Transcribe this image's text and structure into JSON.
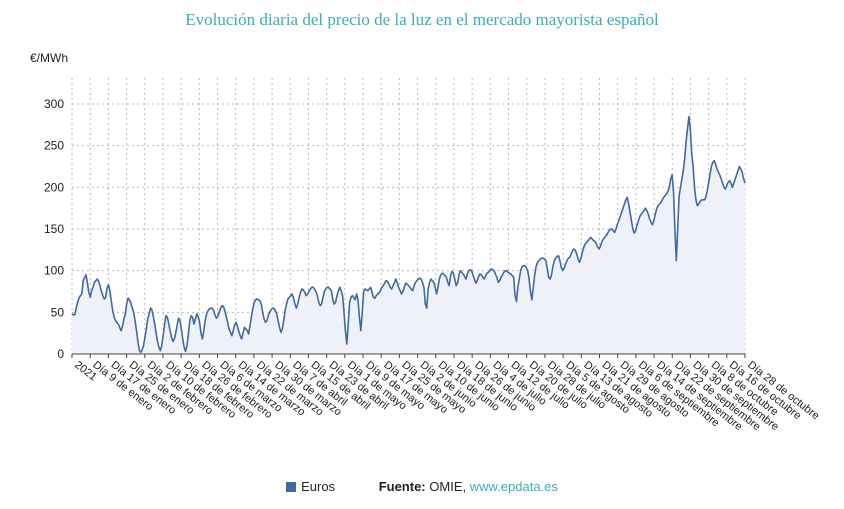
{
  "title": "Evolución diaria del precio de la luz en el mercado mayorista español",
  "unit_label": "€/MWh",
  "legend": {
    "label": "Euros",
    "color": "#3f6aa1"
  },
  "source": {
    "label": "Fuente:",
    "name": "OMIE,",
    "link": "www.epdata.es"
  },
  "colors": {
    "title": "#3aaebe",
    "line": "#3f6aa1",
    "area": "#eef2f8",
    "grid": "#bbbbbb"
  },
  "chart_data": {
    "type": "area",
    "ylim": [
      0,
      300
    ],
    "yticks": [
      0,
      50,
      100,
      150,
      200,
      250,
      300
    ],
    "grid": true,
    "legend_position": "bottom",
    "x_tick_labels": [
      "2021",
      "Día 9 de enero",
      "Día 17 de enero",
      "Día 25 de enero",
      "Día 2 de febrero",
      "Día 10 de febrero",
      "Día 18 de febrero",
      "Día 26 de febrero",
      "Día 6 de marzo",
      "Día 14 de marzo",
      "Día 22 de marzo",
      "Día 30 de marzo",
      "Día 7 de abril",
      "Día 15 de abril",
      "Día 23 de abril",
      "Día 1 de mayo",
      "Día 9 de mayo",
      "Día 17 de mayo",
      "Día 25 de mayo",
      "Día 2 de junio",
      "Día 10 de junio",
      "Día 18 de junio",
      "Día 26 de junio",
      "Día 4 de julio",
      "Día 12 de julio",
      "Día 20 de julio",
      "Día 28 de julio",
      "Día 5 de agosto",
      "Día 13 de agosto",
      "Día 21 de agosto",
      "Día 29 de agosto",
      "Día 6 de septiembre",
      "Día 14 de septiembre",
      "Día 22 de septiembre",
      "Día 30 de septiembre",
      "Día 8 de octubre",
      "Día 16 de octubre",
      "Día 28 de octubre"
    ],
    "series": [
      {
        "name": "Euros",
        "values": [
          48,
          47,
          47,
          55,
          62,
          67,
          70,
          72,
          88,
          92,
          95,
          85,
          74,
          68,
          76,
          80,
          86,
          88,
          90,
          87,
          82,
          75,
          70,
          66,
          68,
          79,
          83,
          76,
          64,
          52,
          45,
          40,
          38,
          36,
          32,
          28,
          33,
          42,
          48,
          60,
          67,
          65,
          61,
          55,
          50,
          40,
          28,
          15,
          5,
          2,
          5,
          10,
          20,
          30,
          42,
          48,
          55,
          53,
          45,
          36,
          25,
          15,
          8,
          4,
          10,
          22,
          35,
          46,
          44,
          36,
          28,
          20,
          15,
          18,
          25,
          35,
          43,
          40,
          30,
          18,
          8,
          3,
          10,
          24,
          40,
          46,
          44,
          36,
          42,
          48,
          45,
          38,
          25,
          18,
          28,
          40,
          48,
          52,
          54,
          55,
          55,
          52,
          47,
          43,
          45,
          50,
          55,
          58,
          57,
          52,
          45,
          38,
          30,
          26,
          22,
          28,
          35,
          38,
          33,
          27,
          22,
          18,
          25,
          32,
          30,
          28,
          24,
          35,
          45,
          55,
          62,
          65,
          66,
          65,
          64,
          60,
          50,
          42,
          38,
          40,
          46,
          50,
          53,
          55,
          55,
          52,
          48,
          40,
          32,
          26,
          30,
          40,
          52,
          60,
          66,
          68,
          70,
          72,
          67,
          60,
          55,
          60,
          68,
          74,
          78,
          77,
          74,
          70,
          72,
          75,
          78,
          80,
          80,
          78,
          75,
          70,
          62,
          58,
          60,
          68,
          75,
          78,
          80,
          80,
          78,
          76,
          65,
          60,
          62,
          70,
          76,
          80,
          76,
          70,
          50,
          28,
          12,
          35,
          62,
          68,
          70,
          68,
          65,
          72,
          65,
          44,
          28,
          50,
          75,
          78,
          77,
          76,
          78,
          80,
          74,
          68,
          67,
          70,
          72,
          73,
          76,
          80,
          82,
          85,
          88,
          87,
          84,
          80,
          78,
          82,
          86,
          90,
          85,
          80,
          76,
          72,
          75,
          80,
          85,
          84,
          82,
          80,
          78,
          76,
          82,
          86,
          88,
          90,
          91,
          90,
          86,
          80,
          60,
          55,
          78,
          85,
          90,
          88,
          86,
          80,
          72,
          80,
          90,
          95,
          97,
          96,
          94,
          92,
          86,
          82,
          94,
          99,
          97,
          90,
          82,
          85,
          95,
          100,
          98,
          96,
          93,
          90,
          96,
          100,
          101,
          100,
          95,
          90,
          85,
          88,
          93,
          96,
          95,
          92,
          90,
          94,
          97,
          98,
          100,
          102,
          101,
          100,
          96,
          92,
          86,
          88,
          92,
          95,
          98,
          100,
          100,
          98,
          97,
          96,
          94,
          92,
          70,
          63,
          80,
          90,
          100,
          105,
          106,
          106,
          104,
          100,
          90,
          75,
          65,
          80,
          95,
          105,
          110,
          112,
          114,
          115,
          115,
          114,
          112,
          102,
          92,
          90,
          95,
          105,
          112,
          115,
          117,
          118,
          112,
          104,
          100,
          103,
          108,
          112,
          115,
          116,
          120,
          124,
          126,
          124,
          120,
          114,
          110,
          115,
          122,
          128,
          132,
          134,
          136,
          138,
          140,
          138,
          136,
          135,
          132,
          128,
          126,
          130,
          135,
          138,
          140,
          142,
          145,
          148,
          150,
          150,
          148,
          146,
          150,
          156,
          160,
          165,
          170,
          175,
          180,
          185,
          188,
          180,
          170,
          160,
          150,
          145,
          148,
          155,
          160,
          165,
          168,
          170,
          172,
          175,
          172,
          168,
          162,
          158,
          155,
          160,
          168,
          174,
          178,
          180,
          182,
          185,
          188,
          190,
          192,
          195,
          200,
          210,
          215,
          195,
          150,
          112,
          150,
          190,
          200,
          210,
          220,
          235,
          255,
          270,
          285,
          270,
          240,
          225,
          200,
          185,
          178,
          180,
          183,
          185,
          185,
          185,
          188,
          195,
          205,
          215,
          225,
          230,
          232,
          228,
          222,
          218,
          215,
          210,
          205,
          200,
          198,
          202,
          206,
          208,
          205,
          200,
          205,
          210,
          215,
          220,
          225,
          222,
          218,
          210,
          205
        ]
      }
    ]
  }
}
